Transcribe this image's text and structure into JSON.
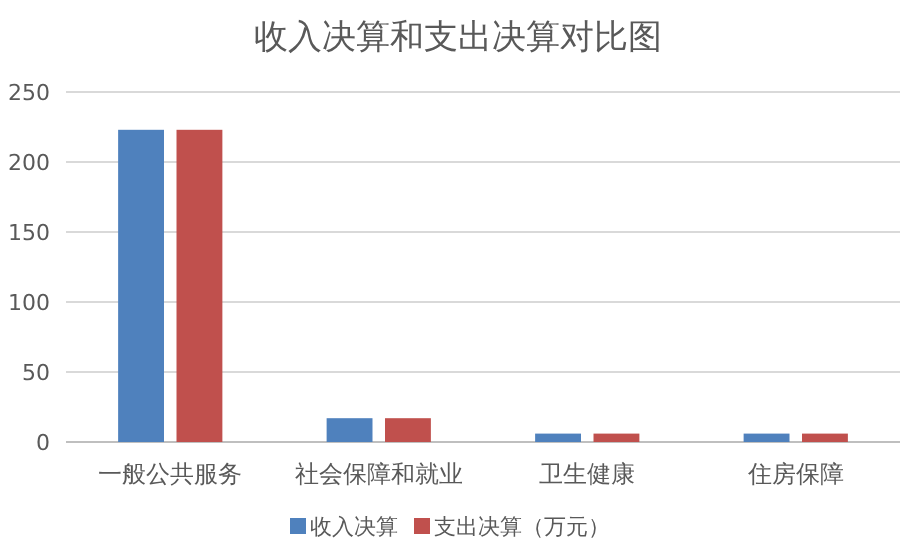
{
  "chart_data": {
    "type": "bar",
    "title": "收入决算和支出决算对比图",
    "categories": [
      "一般公共服务",
      "社会保障和就业",
      "卫生健康",
      "住房保障"
    ],
    "series": [
      {
        "name": "收入决算",
        "color": "#4f81bd",
        "values": [
          223,
          17,
          6,
          6
        ]
      },
      {
        "name": "支出决算（万元）",
        "color": "#c0504d",
        "values": [
          223,
          17,
          6,
          6
        ]
      }
    ],
    "ylim": [
      0,
      250
    ],
    "yticks": [
      0,
      50,
      100,
      150,
      200,
      250
    ],
    "grid": "y",
    "legend": "bottom"
  }
}
